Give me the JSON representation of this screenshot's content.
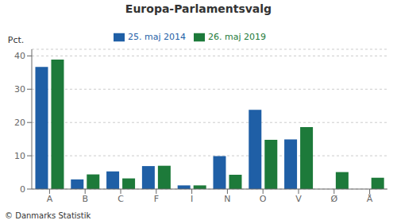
{
  "chart_data": {
    "type": "bar",
    "title": "Europa-Parlamentsvalg",
    "ylabel": "Pct.",
    "footer": "© Danmarks Statistik",
    "categories": [
      "A",
      "B",
      "C",
      "F",
      "I",
      "N",
      "O",
      "V",
      "Ø",
      "Å"
    ],
    "series": [
      {
        "name": "25. maj 2014",
        "color": "#1f5fa6",
        "values": [
          36.7,
          2.9,
          5.3,
          6.9,
          1.1,
          9.9,
          23.8,
          14.9,
          0.0,
          0.0
        ]
      },
      {
        "name": "26. maj 2019",
        "color": "#1d7a3a",
        "values": [
          38.9,
          4.4,
          3.2,
          7.0,
          1.1,
          4.3,
          14.8,
          18.6,
          5.1,
          3.4
        ]
      }
    ],
    "ylim": [
      0,
      42
    ],
    "yticks": [
      0,
      10,
      20,
      30,
      40
    ],
    "grid": true,
    "legend": "top"
  }
}
